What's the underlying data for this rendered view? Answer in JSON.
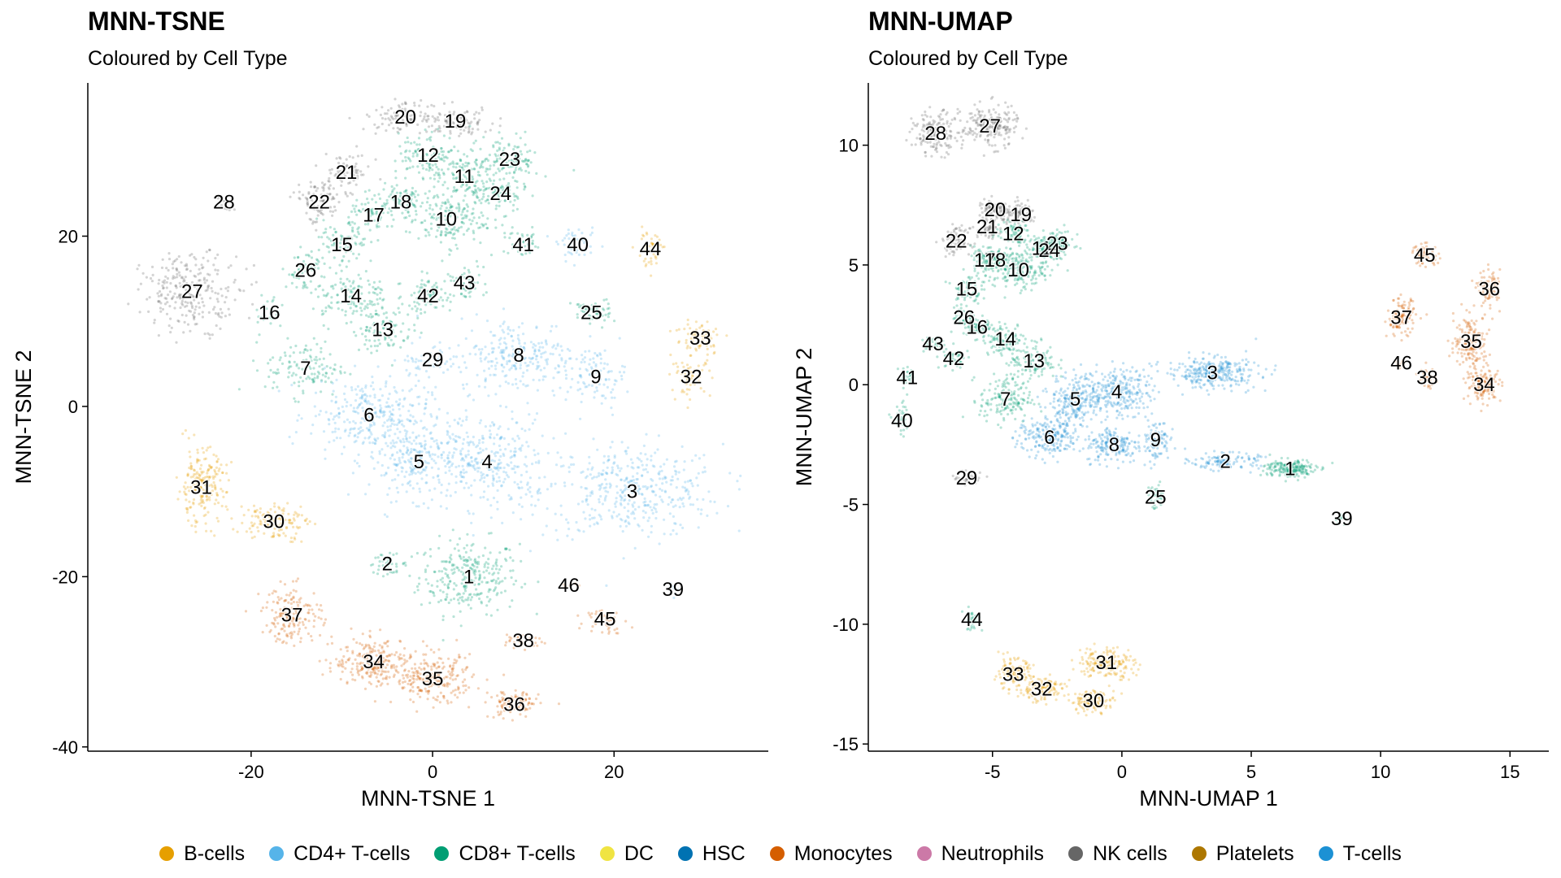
{
  "colors": {
    "B-cells": "#E69F00",
    "CD4+ T-cells": "#56B4E9",
    "CD8+ T-cells": "#009E73",
    "DC": "#F0E442",
    "HSC": "#0072B2",
    "Monocytes": "#D55E00",
    "Neutrophils": "#CC79A7",
    "NK cells": "#666666",
    "Platelets": "#AD7700",
    "T-cells": "#1C91D4"
  },
  "legend": {
    "items": [
      "B-cells",
      "CD4+ T-cells",
      "CD8+ T-cells",
      "DC",
      "HSC",
      "Monocytes",
      "Neutrophils",
      "NK cells",
      "Platelets",
      "T-cells"
    ]
  },
  "chart_data": [
    {
      "type": "scatter",
      "title": "MNN-TSNE",
      "subtitle": "Coloured by Cell Type",
      "xlabel": "MNN-TSNE 1",
      "ylabel": "MNN-TSNE 2",
      "xlim": [
        -38,
        37
      ],
      "ylim": [
        -40.5,
        38
      ],
      "xticks": [
        -20,
        0,
        20
      ],
      "yticks": [
        -40,
        -20,
        0,
        20
      ],
      "grid": false,
      "legend": "bottom",
      "clusters": [
        {
          "label": "1",
          "x": 4,
          "y": -20,
          "type": "CD8+ T-cells",
          "sx": 5,
          "sy": 4,
          "n": 280
        },
        {
          "label": "2",
          "x": -5,
          "y": -18.5,
          "type": "CD8+ T-cells",
          "sx": 2,
          "sy": 1,
          "n": 40
        },
        {
          "label": "3",
          "x": 22,
          "y": -10,
          "type": "CD4+ T-cells",
          "sx": 9,
          "sy": 5,
          "n": 420
        },
        {
          "label": "4",
          "x": 6,
          "y": -6.5,
          "type": "CD4+ T-cells",
          "sx": 6,
          "sy": 5,
          "n": 300
        },
        {
          "label": "5",
          "x": -1.5,
          "y": -6.5,
          "type": "CD4+ T-cells",
          "sx": 5,
          "sy": 4,
          "n": 250
        },
        {
          "label": "6",
          "x": -7,
          "y": -1,
          "type": "CD4+ T-cells",
          "sx": 6,
          "sy": 4,
          "n": 300
        },
        {
          "label": "7",
          "x": -14,
          "y": 4.5,
          "type": "CD8+ T-cells",
          "sx": 4,
          "sy": 3,
          "n": 120
        },
        {
          "label": "8",
          "x": 9.5,
          "y": 6,
          "type": "CD4+ T-cells",
          "sx": 6,
          "sy": 4,
          "n": 250
        },
        {
          "label": "9",
          "x": 18,
          "y": 3.5,
          "type": "CD4+ T-cells",
          "sx": 3,
          "sy": 3,
          "n": 90
        },
        {
          "label": "10",
          "x": 1.5,
          "y": 22,
          "type": "CD8+ T-cells",
          "sx": 4,
          "sy": 3,
          "n": 180
        },
        {
          "label": "11",
          "x": 3.5,
          "y": 27,
          "type": "CD8+ T-cells",
          "sx": 3,
          "sy": 3,
          "n": 120
        },
        {
          "label": "12",
          "x": -0.5,
          "y": 29.5,
          "type": "CD8+ T-cells",
          "sx": 3,
          "sy": 2.5,
          "n": 110
        },
        {
          "label": "13",
          "x": -5.5,
          "y": 9,
          "type": "CD8+ T-cells",
          "sx": 3,
          "sy": 2.5,
          "n": 90
        },
        {
          "label": "14",
          "x": -9,
          "y": 13,
          "type": "CD8+ T-cells",
          "sx": 4,
          "sy": 3,
          "n": 130
        },
        {
          "label": "15",
          "x": -10,
          "y": 19,
          "type": "CD8+ T-cells",
          "sx": 2.5,
          "sy": 2.5,
          "n": 70
        },
        {
          "label": "16",
          "x": -18,
          "y": 11,
          "type": "CD8+ T-cells",
          "sx": 1.5,
          "sy": 2,
          "n": 30
        },
        {
          "label": "17",
          "x": -6.5,
          "y": 22.5,
          "type": "CD8+ T-cells",
          "sx": 2.5,
          "sy": 2,
          "n": 70
        },
        {
          "label": "18",
          "x": -3.5,
          "y": 24,
          "type": "CD8+ T-cells",
          "sx": 2.5,
          "sy": 2,
          "n": 70
        },
        {
          "label": "19",
          "x": 2.5,
          "y": 33.5,
          "type": "NK cells",
          "sx": 4,
          "sy": 1.5,
          "n": 90
        },
        {
          "label": "20",
          "x": -3,
          "y": 34,
          "type": "NK cells",
          "sx": 4,
          "sy": 1.5,
          "n": 90
        },
        {
          "label": "21",
          "x": -9.5,
          "y": 27.5,
          "type": "NK cells",
          "sx": 2.5,
          "sy": 2,
          "n": 70
        },
        {
          "label": "22",
          "x": -12.5,
          "y": 24,
          "type": "NK cells",
          "sx": 2.5,
          "sy": 2.5,
          "n": 90
        },
        {
          "label": "23",
          "x": 8.5,
          "y": 29,
          "type": "CD8+ T-cells",
          "sx": 3,
          "sy": 2.5,
          "n": 110
        },
        {
          "label": "24",
          "x": 7.5,
          "y": 25,
          "type": "CD8+ T-cells",
          "sx": 2.5,
          "sy": 2,
          "n": 80
        },
        {
          "label": "25",
          "x": 17.5,
          "y": 11,
          "type": "CD8+ T-cells",
          "sx": 2,
          "sy": 1.5,
          "n": 50
        },
        {
          "label": "26",
          "x": -14,
          "y": 16,
          "type": "CD8+ T-cells",
          "sx": 2,
          "sy": 2,
          "n": 50
        },
        {
          "label": "27",
          "x": -26.5,
          "y": 13.5,
          "type": "NK cells",
          "sx": 5,
          "sy": 4,
          "n": 260
        },
        {
          "label": "28",
          "x": -23,
          "y": 24,
          "type": "NK cells",
          "sx": 1,
          "sy": 1,
          "n": 15
        },
        {
          "label": "29",
          "x": 0,
          "y": 5.5,
          "type": "CD4+ T-cells",
          "sx": 3,
          "sy": 2,
          "n": 60
        },
        {
          "label": "30",
          "x": -17.5,
          "y": -13.5,
          "type": "B-cells",
          "sx": 3.5,
          "sy": 2,
          "n": 130
        },
        {
          "label": "31",
          "x": -25.5,
          "y": -9.5,
          "type": "B-cells",
          "sx": 2.5,
          "sy": 4,
          "n": 200
        },
        {
          "label": "32",
          "x": 28.5,
          "y": 3.5,
          "type": "B-cells",
          "sx": 2,
          "sy": 2,
          "n": 60
        },
        {
          "label": "33",
          "x": 29.5,
          "y": 8,
          "type": "B-cells",
          "sx": 2.5,
          "sy": 2,
          "n": 80
        },
        {
          "label": "34",
          "x": -6.5,
          "y": -30,
          "type": "Monocytes",
          "sx": 4,
          "sy": 2.5,
          "n": 230
        },
        {
          "label": "35",
          "x": 0,
          "y": -32,
          "type": "Monocytes",
          "sx": 4,
          "sy": 2.5,
          "n": 230
        },
        {
          "label": "36",
          "x": 9,
          "y": -35,
          "type": "Monocytes",
          "sx": 2.5,
          "sy": 1.5,
          "n": 110
        },
        {
          "label": "37",
          "x": -15.5,
          "y": -24.5,
          "type": "Monocytes",
          "sx": 3,
          "sy": 3,
          "n": 170
        },
        {
          "label": "38",
          "x": 10,
          "y": -27.5,
          "type": "Monocytes",
          "sx": 2,
          "sy": 1,
          "n": 30
        },
        {
          "label": "39",
          "x": 26.5,
          "y": -21.5,
          "type": "CD4+ T-cells",
          "sx": 0.8,
          "sy": 1,
          "n": 12
        },
        {
          "label": "40",
          "x": 16,
          "y": 19,
          "type": "CD4+ T-cells",
          "sx": 2,
          "sy": 1.5,
          "n": 50
        },
        {
          "label": "41",
          "x": 10,
          "y": 19,
          "type": "CD8+ T-cells",
          "sx": 2,
          "sy": 1.5,
          "n": 40
        },
        {
          "label": "42",
          "x": -0.5,
          "y": 13,
          "type": "CD8+ T-cells",
          "sx": 2.5,
          "sy": 2,
          "n": 70
        },
        {
          "label": "43",
          "x": 3.5,
          "y": 14.5,
          "type": "CD8+ T-cells",
          "sx": 2,
          "sy": 2,
          "n": 50
        },
        {
          "label": "44",
          "x": 24,
          "y": 18.5,
          "type": "B-cells",
          "sx": 1.5,
          "sy": 2,
          "n": 45
        },
        {
          "label": "45",
          "x": 19,
          "y": -25,
          "type": "Monocytes",
          "sx": 2,
          "sy": 1.5,
          "n": 45
        },
        {
          "label": "46",
          "x": 15,
          "y": -21,
          "type": "Monocytes",
          "sx": 0.8,
          "sy": 0.8,
          "n": 10
        }
      ]
    },
    {
      "type": "scatter",
      "title": "MNN-UMAP",
      "subtitle": "Coloured by Cell Type",
      "xlabel": "MNN-UMAP 1",
      "ylabel": "MNN-UMAP 2",
      "xlim": [
        -9.8,
        16.5
      ],
      "ylim": [
        -15.3,
        12.6
      ],
      "xticks": [
        -5,
        0,
        5,
        10,
        15
      ],
      "yticks": [
        -15,
        -10,
        -5,
        0,
        5,
        10
      ],
      "grid": false,
      "legend": "bottom",
      "clusters": [
        {
          "label": "1",
          "x": 6.5,
          "y": -3.5,
          "type": "CD8+ T-cells",
          "sx": 0.9,
          "sy": 0.35,
          "n": 200
        },
        {
          "label": "2",
          "x": 4,
          "y": -3.2,
          "type": "T-cells",
          "sx": 1.2,
          "sy": 0.3,
          "n": 120
        },
        {
          "label": "3",
          "x": 3.5,
          "y": 0.5,
          "type": "T-cells",
          "sx": 1.6,
          "sy": 0.6,
          "n": 300
        },
        {
          "label": "4",
          "x": -0.2,
          "y": -0.3,
          "type": "T-cells",
          "sx": 1.2,
          "sy": 0.9,
          "n": 260
        },
        {
          "label": "5",
          "x": -1.8,
          "y": -0.6,
          "type": "T-cells",
          "sx": 0.9,
          "sy": 0.9,
          "n": 200
        },
        {
          "label": "6",
          "x": -2.8,
          "y": -2.2,
          "type": "T-cells",
          "sx": 1.1,
          "sy": 0.8,
          "n": 220
        },
        {
          "label": "7",
          "x": -4.5,
          "y": -0.6,
          "type": "CD8+ T-cells",
          "sx": 0.9,
          "sy": 0.9,
          "n": 160
        },
        {
          "label": "8",
          "x": -0.3,
          "y": -2.5,
          "type": "T-cells",
          "sx": 1,
          "sy": 0.7,
          "n": 180
        },
        {
          "label": "9",
          "x": 1.3,
          "y": -2.3,
          "type": "T-cells",
          "sx": 0.5,
          "sy": 0.8,
          "n": 100
        },
        {
          "label": "10",
          "x": -4,
          "y": 4.8,
          "type": "CD8+ T-cells",
          "sx": 0.9,
          "sy": 0.7,
          "n": 180
        },
        {
          "label": "11",
          "x": -3.1,
          "y": 5.7,
          "type": "CD8+ T-cells",
          "sx": 0.5,
          "sy": 0.5,
          "n": 90
        },
        {
          "label": "12",
          "x": -4.2,
          "y": 6.3,
          "type": "CD8+ T-cells",
          "sx": 0.6,
          "sy": 0.5,
          "n": 90
        },
        {
          "label": "13",
          "x": -3.4,
          "y": 1,
          "type": "CD8+ T-cells",
          "sx": 0.8,
          "sy": 0.7,
          "n": 110
        },
        {
          "label": "14",
          "x": -4.5,
          "y": 1.9,
          "type": "CD8+ T-cells",
          "sx": 0.8,
          "sy": 0.6,
          "n": 100
        },
        {
          "label": "15",
          "x": -6,
          "y": 4,
          "type": "CD8+ T-cells",
          "sx": 0.5,
          "sy": 0.6,
          "n": 70
        },
        {
          "label": "16",
          "x": -5.6,
          "y": 2.4,
          "type": "CD8+ T-cells",
          "sx": 0.5,
          "sy": 0.5,
          "n": 60
        },
        {
          "label": "17",
          "x": -5.3,
          "y": 5.2,
          "type": "CD8+ T-cells",
          "sx": 0.5,
          "sy": 0.5,
          "n": 70
        },
        {
          "label": "18",
          "x": -4.9,
          "y": 5.2,
          "type": "CD8+ T-cells",
          "sx": 0.5,
          "sy": 0.5,
          "n": 70
        },
        {
          "label": "19",
          "x": -3.9,
          "y": 7.1,
          "type": "NK cells",
          "sx": 0.6,
          "sy": 0.4,
          "n": 80
        },
        {
          "label": "20",
          "x": -4.9,
          "y": 7.3,
          "type": "NK cells",
          "sx": 0.6,
          "sy": 0.4,
          "n": 80
        },
        {
          "label": "21",
          "x": -5.2,
          "y": 6.6,
          "type": "NK cells",
          "sx": 0.5,
          "sy": 0.4,
          "n": 60
        },
        {
          "label": "22",
          "x": -6.4,
          "y": 6,
          "type": "NK cells",
          "sx": 0.5,
          "sy": 0.5,
          "n": 70
        },
        {
          "label": "23",
          "x": -2.5,
          "y": 5.9,
          "type": "CD8+ T-cells",
          "sx": 0.6,
          "sy": 0.5,
          "n": 90
        },
        {
          "label": "24",
          "x": -2.8,
          "y": 5.6,
          "type": "CD8+ T-cells",
          "sx": 0.5,
          "sy": 0.5,
          "n": 70
        },
        {
          "label": "25",
          "x": 1.3,
          "y": -4.7,
          "type": "CD8+ T-cells",
          "sx": 0.3,
          "sy": 0.5,
          "n": 40
        },
        {
          "label": "26",
          "x": -6.1,
          "y": 2.8,
          "type": "CD8+ T-cells",
          "sx": 0.4,
          "sy": 0.4,
          "n": 40
        },
        {
          "label": "27",
          "x": -5.1,
          "y": 10.8,
          "type": "NK cells",
          "sx": 1,
          "sy": 0.8,
          "n": 200
        },
        {
          "label": "28",
          "x": -7.2,
          "y": 10.5,
          "type": "NK cells",
          "sx": 0.8,
          "sy": 0.8,
          "n": 150
        },
        {
          "label": "29",
          "x": -6,
          "y": -3.9,
          "type": "NK cells",
          "sx": 0.6,
          "sy": 0.3,
          "n": 30
        },
        {
          "label": "30",
          "x": -1.1,
          "y": -13.2,
          "type": "B-cells",
          "sx": 0.8,
          "sy": 0.4,
          "n": 110
        },
        {
          "label": "31",
          "x": -0.6,
          "y": -11.6,
          "type": "B-cells",
          "sx": 1,
          "sy": 0.6,
          "n": 180
        },
        {
          "label": "32",
          "x": -3.1,
          "y": -12.7,
          "type": "B-cells",
          "sx": 0.8,
          "sy": 0.5,
          "n": 110
        },
        {
          "label": "33",
          "x": -4.2,
          "y": -12.1,
          "type": "B-cells",
          "sx": 0.7,
          "sy": 0.6,
          "n": 120
        },
        {
          "label": "34",
          "x": 14,
          "y": 0,
          "type": "Monocytes",
          "sx": 0.6,
          "sy": 0.6,
          "n": 140
        },
        {
          "label": "35",
          "x": 13.5,
          "y": 1.8,
          "type": "Monocytes",
          "sx": 0.6,
          "sy": 1,
          "n": 170
        },
        {
          "label": "36",
          "x": 14.2,
          "y": 4,
          "type": "Monocytes",
          "sx": 0.4,
          "sy": 0.7,
          "n": 90
        },
        {
          "label": "37",
          "x": 10.8,
          "y": 2.8,
          "type": "Monocytes",
          "sx": 0.5,
          "sy": 0.7,
          "n": 110
        },
        {
          "label": "38",
          "x": 11.8,
          "y": 0.3,
          "type": "Monocytes",
          "sx": 0.3,
          "sy": 0.4,
          "n": 30
        },
        {
          "label": "39",
          "x": 8.5,
          "y": -5.6,
          "type": "CD8+ T-cells",
          "sx": 0.3,
          "sy": 0.3,
          "n": 12
        },
        {
          "label": "40",
          "x": -8.5,
          "y": -1.5,
          "type": "CD8+ T-cells",
          "sx": 0.3,
          "sy": 0.6,
          "n": 40
        },
        {
          "label": "41",
          "x": -8.3,
          "y": 0.3,
          "type": "CD8+ T-cells",
          "sx": 0.3,
          "sy": 0.4,
          "n": 30
        },
        {
          "label": "42",
          "x": -6.5,
          "y": 1.1,
          "type": "CD8+ T-cells",
          "sx": 0.5,
          "sy": 0.4,
          "n": 50
        },
        {
          "label": "43",
          "x": -7.3,
          "y": 1.7,
          "type": "CD8+ T-cells",
          "sx": 0.4,
          "sy": 0.3,
          "n": 30
        },
        {
          "label": "44",
          "x": -5.8,
          "y": -9.8,
          "type": "CD8+ T-cells",
          "sx": 0.3,
          "sy": 0.4,
          "n": 40
        },
        {
          "label": "45",
          "x": 11.7,
          "y": 5.4,
          "type": "Monocytes",
          "sx": 0.5,
          "sy": 0.4,
          "n": 60
        },
        {
          "label": "46",
          "x": 10.8,
          "y": 0.9,
          "type": "Monocytes",
          "sx": 0.2,
          "sy": 0.2,
          "n": 10
        }
      ]
    }
  ]
}
